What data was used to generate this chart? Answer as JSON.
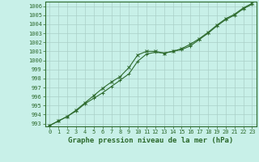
{
  "line1_x": [
    0,
    1,
    2,
    3,
    4,
    5,
    6,
    7,
    8,
    9,
    10,
    11,
    12,
    13,
    14,
    15,
    16,
    17,
    18,
    19,
    20,
    21,
    22,
    23
  ],
  "line1_y": [
    992.8,
    993.3,
    993.8,
    994.4,
    995.2,
    995.8,
    996.4,
    997.1,
    997.8,
    998.5,
    999.9,
    1000.7,
    1000.9,
    1000.8,
    1001.0,
    1001.2,
    1001.6,
    1002.3,
    1003.0,
    1003.8,
    1004.5,
    1005.0,
    1005.7,
    1006.2
  ],
  "line2_x": [
    0,
    1,
    2,
    3,
    4,
    5,
    6,
    7,
    8,
    9,
    10,
    11,
    12,
    13,
    14,
    15,
    16,
    17,
    18,
    19,
    20,
    21,
    22,
    23
  ],
  "line2_y": [
    992.8,
    993.3,
    993.8,
    994.5,
    995.3,
    996.1,
    996.9,
    997.6,
    998.2,
    999.2,
    1000.6,
    1001.0,
    1001.0,
    1000.8,
    1001.0,
    1001.3,
    1001.8,
    1002.4,
    1003.1,
    1003.9,
    1004.6,
    1005.1,
    1005.8,
    1006.3
  ],
  "line_color": "#2d6a2d",
  "bg_color": "#c8f0e8",
  "grid_color": "#aacfc8",
  "xlabel": "Graphe pression niveau de la mer (hPa)",
  "ylim_min": 992.7,
  "ylim_max": 1006.5,
  "xlim_min": -0.5,
  "xlim_max": 23.5,
  "yticks": [
    993,
    994,
    995,
    996,
    997,
    998,
    999,
    1000,
    1001,
    1002,
    1003,
    1004,
    1005,
    1006
  ],
  "xticks": [
    0,
    1,
    2,
    3,
    4,
    5,
    6,
    7,
    8,
    9,
    10,
    11,
    12,
    13,
    14,
    15,
    16,
    17,
    18,
    19,
    20,
    21,
    22,
    23
  ],
  "tick_fontsize": 5.0,
  "xlabel_fontsize": 6.5,
  "marker1": "+",
  "marker2": "x",
  "markersize": 3,
  "linewidth": 0.8
}
